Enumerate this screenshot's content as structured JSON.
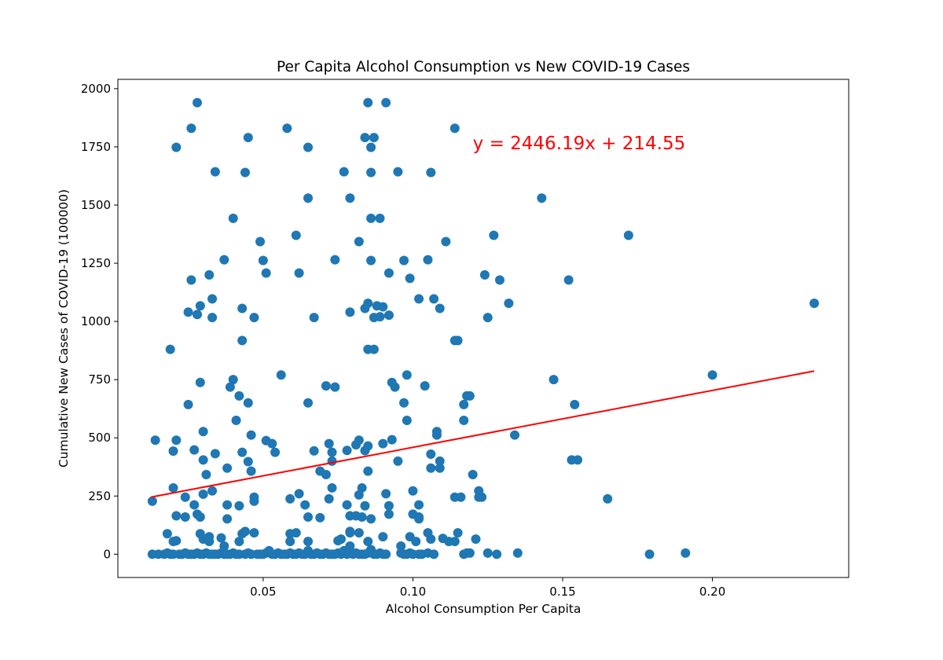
{
  "chart_data": {
    "type": "scatter",
    "title": "Per Capita Alcohol Consumption vs New COVID-19 Cases",
    "xlabel": "Alcohol Consumption Per Capita",
    "ylabel": "Cumulative New Cases of COVID-19 (100000)",
    "xlim": [
      0.0015,
      0.2455
    ],
    "ylim": [
      -100,
      2040
    ],
    "x_ticks": [
      0.05,
      0.1,
      0.15,
      0.2
    ],
    "x_tick_labels": [
      "0.05",
      "0.10",
      "0.15",
      "0.20"
    ],
    "y_ticks": [
      0,
      250,
      500,
      750,
      1000,
      1250,
      1500,
      1750,
      2000
    ],
    "y_tick_labels": [
      "0",
      "250",
      "500",
      "750",
      "1000",
      "1250",
      "1500",
      "1750",
      "2000"
    ],
    "grid": false,
    "marker_color": "#1f77b4",
    "line_color": "#ff0000",
    "annotation": {
      "text": "y = 2446.19x + 214.55",
      "color": "#ff0000",
      "x": 0.12,
      "y": 1750
    },
    "regression": {
      "slope": 2446.19,
      "intercept": 214.55,
      "x_range": [
        0.0125,
        0.234
      ]
    },
    "points": [
      [
        0.028,
        1940
      ],
      [
        0.085,
        1940
      ],
      [
        0.091,
        1940
      ],
      [
        0.026,
        1830
      ],
      [
        0.058,
        1830
      ],
      [
        0.114,
        1830
      ],
      [
        0.021,
        1748
      ],
      [
        0.045,
        1790
      ],
      [
        0.065,
        1748
      ],
      [
        0.084,
        1790
      ],
      [
        0.087,
        1790
      ],
      [
        0.086,
        1748
      ],
      [
        0.034,
        1643
      ],
      [
        0.044,
        1640
      ],
      [
        0.077,
        1643
      ],
      [
        0.086,
        1640
      ],
      [
        0.095,
        1643
      ],
      [
        0.106,
        1640
      ],
      [
        0.065,
        1530
      ],
      [
        0.079,
        1530
      ],
      [
        0.143,
        1530
      ],
      [
        0.04,
        1443
      ],
      [
        0.086,
        1443
      ],
      [
        0.089,
        1443
      ],
      [
        0.049,
        1343
      ],
      [
        0.061,
        1370
      ],
      [
        0.082,
        1343
      ],
      [
        0.111,
        1343
      ],
      [
        0.127,
        1370
      ],
      [
        0.172,
        1370
      ],
      [
        0.037,
        1265
      ],
      [
        0.05,
        1262
      ],
      [
        0.074,
        1265
      ],
      [
        0.086,
        1262
      ],
      [
        0.097,
        1262
      ],
      [
        0.105,
        1265
      ],
      [
        0.026,
        1178
      ],
      [
        0.032,
        1200
      ],
      [
        0.051,
        1208
      ],
      [
        0.062,
        1208
      ],
      [
        0.092,
        1208
      ],
      [
        0.099,
        1185
      ],
      [
        0.124,
        1200
      ],
      [
        0.129,
        1178
      ],
      [
        0.152,
        1178
      ],
      [
        0.029,
        1067
      ],
      [
        0.033,
        1097
      ],
      [
        0.043,
        1056
      ],
      [
        0.084,
        1056
      ],
      [
        0.085,
        1078
      ],
      [
        0.088,
        1067
      ],
      [
        0.09,
        1063
      ],
      [
        0.102,
        1097
      ],
      [
        0.107,
        1097
      ],
      [
        0.109,
        1056
      ],
      [
        0.132,
        1078
      ],
      [
        0.234,
        1078
      ],
      [
        0.025,
        1040
      ],
      [
        0.028,
        1030
      ],
      [
        0.033,
        1017
      ],
      [
        0.047,
        1017
      ],
      [
        0.067,
        1017
      ],
      [
        0.079,
        1040
      ],
      [
        0.087,
        1017
      ],
      [
        0.089,
        1020
      ],
      [
        0.092,
        1027
      ],
      [
        0.125,
        1017
      ],
      [
        0.019,
        880
      ],
      [
        0.043,
        918
      ],
      [
        0.085,
        880
      ],
      [
        0.087,
        880
      ],
      [
        0.114,
        918
      ],
      [
        0.115,
        918
      ],
      [
        0.029,
        738
      ],
      [
        0.039,
        718
      ],
      [
        0.04,
        750
      ],
      [
        0.042,
        680
      ],
      [
        0.056,
        770
      ],
      [
        0.071,
        723
      ],
      [
        0.074,
        718
      ],
      [
        0.093,
        738
      ],
      [
        0.094,
        718
      ],
      [
        0.098,
        770
      ],
      [
        0.104,
        723
      ],
      [
        0.118,
        680
      ],
      [
        0.119,
        680
      ],
      [
        0.147,
        750
      ],
      [
        0.2,
        770
      ],
      [
        0.025,
        643
      ],
      [
        0.041,
        575
      ],
      [
        0.045,
        650
      ],
      [
        0.065,
        650
      ],
      [
        0.097,
        650
      ],
      [
        0.098,
        575
      ],
      [
        0.117,
        643
      ],
      [
        0.117,
        575
      ],
      [
        0.154,
        643
      ],
      [
        0.014,
        490
      ],
      [
        0.021,
        490
      ],
      [
        0.02,
        443
      ],
      [
        0.027,
        448
      ],
      [
        0.03,
        527
      ],
      [
        0.03,
        405
      ],
      [
        0.034,
        432
      ],
      [
        0.043,
        438
      ],
      [
        0.045,
        398
      ],
      [
        0.046,
        512
      ],
      [
        0.046,
        357
      ],
      [
        0.051,
        488
      ],
      [
        0.053,
        475
      ],
      [
        0.054,
        438
      ],
      [
        0.067,
        444
      ],
      [
        0.072,
        475
      ],
      [
        0.073,
        438
      ],
      [
        0.073,
        400
      ],
      [
        0.078,
        446
      ],
      [
        0.081,
        470
      ],
      [
        0.082,
        490
      ],
      [
        0.084,
        445
      ],
      [
        0.085,
        465
      ],
      [
        0.085,
        357
      ],
      [
        0.09,
        475
      ],
      [
        0.093,
        492
      ],
      [
        0.095,
        400
      ],
      [
        0.106,
        430
      ],
      [
        0.106,
        370
      ],
      [
        0.108,
        527
      ],
      [
        0.108,
        512
      ],
      [
        0.109,
        400
      ],
      [
        0.109,
        370
      ],
      [
        0.12,
        342
      ],
      [
        0.153,
        405
      ],
      [
        0.155,
        405
      ],
      [
        0.031,
        342
      ],
      [
        0.038,
        370
      ],
      [
        0.069,
        357
      ],
      [
        0.071,
        342
      ],
      [
        0.013,
        228
      ],
      [
        0.02,
        285
      ],
      [
        0.024,
        245
      ],
      [
        0.03,
        258
      ],
      [
        0.033,
        272
      ],
      [
        0.027,
        212
      ],
      [
        0.038,
        212
      ],
      [
        0.042,
        208
      ],
      [
        0.047,
        245
      ],
      [
        0.047,
        228
      ],
      [
        0.059,
        238
      ],
      [
        0.062,
        260
      ],
      [
        0.064,
        212
      ],
      [
        0.072,
        238
      ],
      [
        0.073,
        285
      ],
      [
        0.078,
        212
      ],
      [
        0.082,
        255
      ],
      [
        0.083,
        285
      ],
      [
        0.084,
        208
      ],
      [
        0.091,
        260
      ],
      [
        0.092,
        208
      ],
      [
        0.1,
        272
      ],
      [
        0.102,
        212
      ],
      [
        0.114,
        245
      ],
      [
        0.116,
        245
      ],
      [
        0.122,
        245
      ],
      [
        0.122,
        272
      ],
      [
        0.123,
        245
      ],
      [
        0.165,
        238
      ],
      [
        0.021,
        165
      ],
      [
        0.024,
        160
      ],
      [
        0.028,
        172
      ],
      [
        0.029,
        160
      ],
      [
        0.038,
        152
      ],
      [
        0.065,
        160
      ],
      [
        0.069,
        157
      ],
      [
        0.079,
        165
      ],
      [
        0.081,
        165
      ],
      [
        0.083,
        160
      ],
      [
        0.086,
        152
      ],
      [
        0.092,
        172
      ],
      [
        0.1,
        172
      ],
      [
        0.102,
        160
      ],
      [
        0.102,
        152
      ],
      [
        0.134,
        512
      ],
      [
        0.018,
        88
      ],
      [
        0.02,
        55
      ],
      [
        0.021,
        58
      ],
      [
        0.029,
        88
      ],
      [
        0.03,
        65
      ],
      [
        0.032,
        55
      ],
      [
        0.032,
        75
      ],
      [
        0.036,
        70
      ],
      [
        0.037,
        35
      ],
      [
        0.042,
        55
      ],
      [
        0.043,
        88
      ],
      [
        0.044,
        98
      ],
      [
        0.047,
        92
      ],
      [
        0.059,
        55
      ],
      [
        0.059,
        88
      ],
      [
        0.061,
        92
      ],
      [
        0.065,
        55
      ],
      [
        0.075,
        58
      ],
      [
        0.076,
        65
      ],
      [
        0.079,
        92
      ],
      [
        0.079,
        98
      ],
      [
        0.082,
        92
      ],
      [
        0.085,
        55
      ],
      [
        0.09,
        75
      ],
      [
        0.096,
        35
      ],
      [
        0.099,
        75
      ],
      [
        0.101,
        55
      ],
      [
        0.105,
        92
      ],
      [
        0.106,
        65
      ],
      [
        0.11,
        68
      ],
      [
        0.112,
        55
      ],
      [
        0.114,
        55
      ],
      [
        0.115,
        92
      ],
      [
        0.121,
        65
      ],
      [
        0.013,
        0
      ],
      [
        0.015,
        0
      ],
      [
        0.017,
        0
      ],
      [
        0.018,
        5
      ],
      [
        0.019,
        0
      ],
      [
        0.02,
        0
      ],
      [
        0.022,
        0
      ],
      [
        0.023,
        0
      ],
      [
        0.024,
        5
      ],
      [
        0.025,
        0
      ],
      [
        0.026,
        0
      ],
      [
        0.027,
        0
      ],
      [
        0.028,
        5
      ],
      [
        0.029,
        0
      ],
      [
        0.03,
        0
      ],
      [
        0.031,
        5
      ],
      [
        0.032,
        0
      ],
      [
        0.033,
        0
      ],
      [
        0.034,
        0
      ],
      [
        0.035,
        0
      ],
      [
        0.036,
        5
      ],
      [
        0.037,
        0
      ],
      [
        0.038,
        0
      ],
      [
        0.039,
        0
      ],
      [
        0.04,
        5
      ],
      [
        0.041,
        0
      ],
      [
        0.042,
        0
      ],
      [
        0.044,
        0
      ],
      [
        0.045,
        5
      ],
      [
        0.046,
        0
      ],
      [
        0.048,
        0
      ],
      [
        0.049,
        0
      ],
      [
        0.05,
        0
      ],
      [
        0.051,
        5
      ],
      [
        0.052,
        15
      ],
      [
        0.053,
        0
      ],
      [
        0.054,
        0
      ],
      [
        0.055,
        5
      ],
      [
        0.056,
        0
      ],
      [
        0.057,
        0
      ],
      [
        0.058,
        0
      ],
      [
        0.059,
        5
      ],
      [
        0.06,
        0
      ],
      [
        0.061,
        0
      ],
      [
        0.062,
        5
      ],
      [
        0.063,
        0
      ],
      [
        0.064,
        0
      ],
      [
        0.065,
        15
      ],
      [
        0.066,
        0
      ],
      [
        0.067,
        0
      ],
      [
        0.068,
        5
      ],
      [
        0.069,
        0
      ],
      [
        0.07,
        0
      ],
      [
        0.071,
        5
      ],
      [
        0.072,
        0
      ],
      [
        0.073,
        0
      ],
      [
        0.074,
        0
      ],
      [
        0.075,
        5
      ],
      [
        0.076,
        0
      ],
      [
        0.077,
        15
      ],
      [
        0.078,
        0
      ],
      [
        0.079,
        35
      ],
      [
        0.08,
        0
      ],
      [
        0.081,
        5
      ],
      [
        0.082,
        0
      ],
      [
        0.083,
        0
      ],
      [
        0.084,
        0
      ],
      [
        0.085,
        5
      ],
      [
        0.086,
        20
      ],
      [
        0.087,
        0
      ],
      [
        0.088,
        0
      ],
      [
        0.089,
        5
      ],
      [
        0.09,
        0
      ],
      [
        0.091,
        0
      ],
      [
        0.096,
        5
      ],
      [
        0.097,
        0
      ],
      [
        0.098,
        0
      ],
      [
        0.099,
        5
      ],
      [
        0.1,
        0
      ],
      [
        0.102,
        0
      ],
      [
        0.103,
        0
      ],
      [
        0.105,
        5
      ],
      [
        0.107,
        0
      ],
      [
        0.117,
        0
      ],
      [
        0.118,
        5
      ],
      [
        0.119,
        5
      ],
      [
        0.125,
        5
      ],
      [
        0.128,
        0
      ],
      [
        0.135,
        5
      ],
      [
        0.179,
        0
      ],
      [
        0.191,
        5
      ]
    ]
  }
}
